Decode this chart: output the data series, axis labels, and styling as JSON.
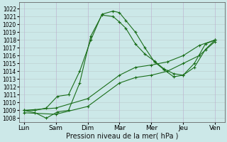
{
  "xlabel": "Pression niveau de la mer( hPa )",
  "ylim": [
    1007.5,
    1022.8
  ],
  "yticks": [
    1008,
    1009,
    1010,
    1011,
    1012,
    1013,
    1014,
    1015,
    1016,
    1017,
    1018,
    1019,
    1020,
    1021,
    1022
  ],
  "xtick_labels": [
    "Lun",
    "Sam",
    "Dim",
    "Mar",
    "Mer",
    "Jeu",
    "Ven"
  ],
  "xtick_pos": [
    0,
    1,
    2,
    3,
    4,
    5,
    6
  ],
  "bg_color": "#cce8e8",
  "grid_color_v": "#bbaacc",
  "grid_color_h": "#bbcccc",
  "line_color": "#1a6e1a",
  "line1_x": [
    0.0,
    0.35,
    0.7,
    1.05,
    1.4,
    1.75,
    2.1,
    2.45,
    2.8,
    3.0,
    3.2,
    3.5,
    3.8,
    4.1,
    4.4,
    4.7,
    5.0,
    5.35,
    5.7,
    6.0
  ],
  "line1_y": [
    1009.0,
    1009.0,
    1009.3,
    1010.8,
    1011.0,
    1014.0,
    1018.0,
    1021.3,
    1021.7,
    1021.5,
    1020.5,
    1019.0,
    1017.0,
    1015.2,
    1014.2,
    1013.3,
    1013.5,
    1015.0,
    1017.5,
    1018.0
  ],
  "line2_x": [
    0.0,
    0.35,
    0.7,
    1.05,
    1.4,
    1.75,
    2.1,
    2.45,
    2.8,
    3.0,
    3.2,
    3.5,
    3.8,
    4.1,
    4.4,
    4.7,
    5.0,
    5.35,
    5.7,
    6.0
  ],
  "line2_y": [
    1009.0,
    1008.7,
    1008.0,
    1008.8,
    1009.0,
    1012.5,
    1018.5,
    1021.2,
    1021.0,
    1020.3,
    1019.5,
    1017.5,
    1016.2,
    1015.3,
    1014.3,
    1013.7,
    1013.5,
    1014.5,
    1016.8,
    1018.0
  ],
  "line3_x": [
    0.0,
    1.0,
    2.0,
    3.0,
    3.5,
    4.0,
    4.5,
    5.0,
    5.5,
    6.0
  ],
  "line3_y": [
    1009.0,
    1009.3,
    1010.5,
    1013.5,
    1014.5,
    1014.8,
    1015.2,
    1016.0,
    1017.3,
    1018.0
  ],
  "line4_x": [
    0.0,
    1.0,
    2.0,
    3.0,
    3.5,
    4.0,
    4.5,
    5.0,
    5.5,
    6.0
  ],
  "line4_y": [
    1008.7,
    1008.5,
    1009.5,
    1012.5,
    1013.2,
    1013.5,
    1014.0,
    1015.0,
    1016.0,
    1017.8
  ]
}
